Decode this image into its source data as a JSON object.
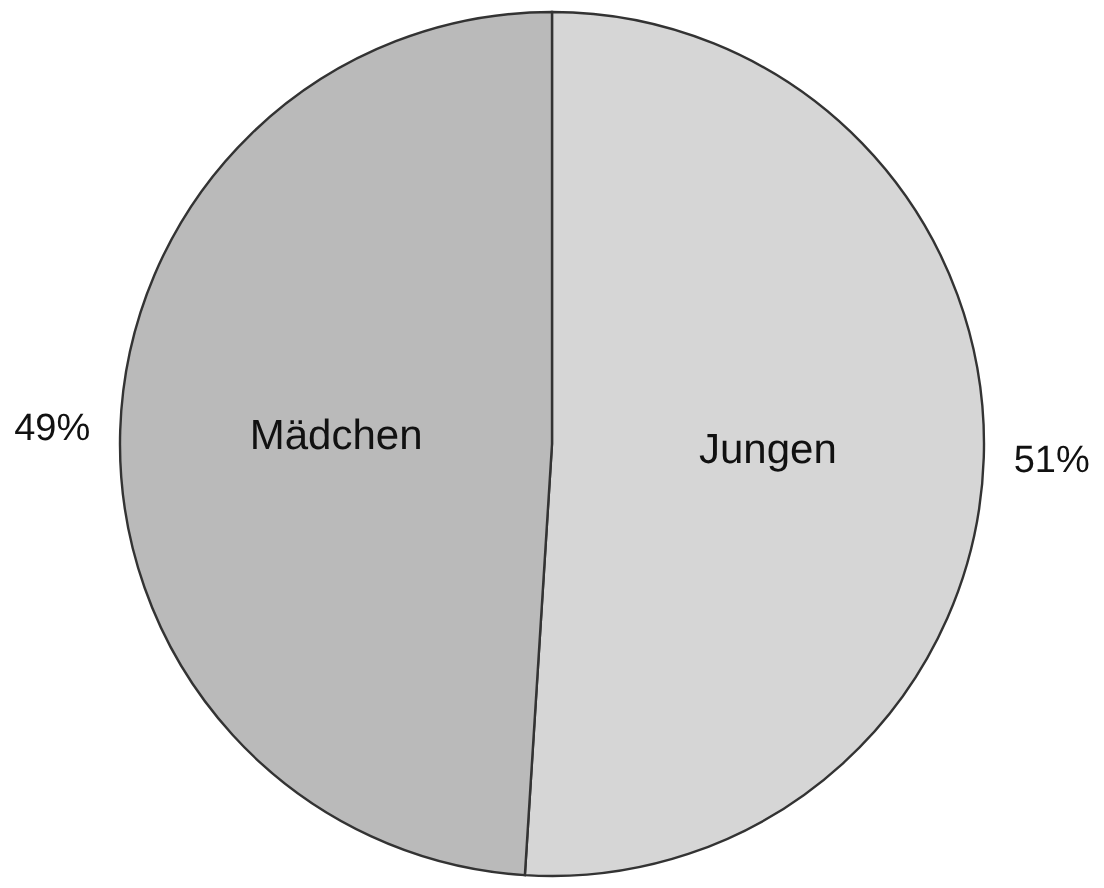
{
  "chart_data": {
    "type": "pie",
    "categories": [
      "Jungen",
      "Mädchen"
    ],
    "values": [
      51,
      49
    ],
    "colors": [
      "#d6d6d6",
      "#bababa"
    ],
    "value_labels": [
      "51%",
      "49%"
    ]
  }
}
